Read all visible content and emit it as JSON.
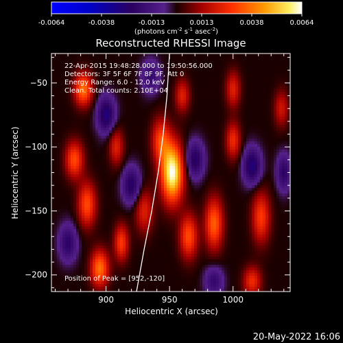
{
  "chart_data": {
    "type": "heatmap",
    "title": "Reconstructed RHESSI Image",
    "xlabel": "Heliocentric X (arcsec)",
    "ylabel": "Heliocentric Y (arcsec)",
    "xlim": [
      857,
      1045
    ],
    "ylim": [
      -213,
      -27
    ],
    "xticks": [
      900,
      950,
      1000
    ],
    "yticks": [
      -50,
      -100,
      -150,
      -200
    ],
    "colorbar": {
      "range": [
        -0.0064,
        0.0064
      ],
      "tick_labels": [
        "-0.0064",
        "-0.0038",
        "-0.0013",
        "0.0013",
        "0.0038",
        "0.0064"
      ],
      "unit_main": "(photons cm",
      "unit_exp1": "-2",
      "unit_mid": " s",
      "unit_exp2": "-1",
      "unit_end": " asec",
      "unit_exp3": "-2",
      "unit_close": ")"
    },
    "info_lines": [
      "22-Apr-2015 19:48:28.000 to 19:50:56.000",
      "Detectors: 3F 5F 6F 7F 8F 9F, Att 0",
      "Energy Range: 6.0 - 12.0 keV",
      "Clean.  Total counts: 2.10E+04"
    ],
    "peak_label": "Position of Peak = [952,-120]",
    "peak": {
      "x": 952,
      "y": -120,
      "value": 0.0064
    },
    "sources": [
      {
        "x": 952,
        "y": -120,
        "sx": 6,
        "sy": 16,
        "amp": 1.0
      },
      {
        "x": 943,
        "y": -95,
        "sx": 5,
        "sy": 12,
        "amp": 0.45
      },
      {
        "x": 930,
        "y": -150,
        "sx": 5,
        "sy": 12,
        "amp": 0.35
      },
      {
        "x": 882,
        "y": -55,
        "sx": 5,
        "sy": 9,
        "amp": 0.6
      },
      {
        "x": 875,
        "y": -110,
        "sx": 5,
        "sy": 10,
        "amp": 0.5
      },
      {
        "x": 885,
        "y": -145,
        "sx": 5,
        "sy": 12,
        "amp": 0.5
      },
      {
        "x": 895,
        "y": -195,
        "sx": 5,
        "sy": 10,
        "amp": 0.6
      },
      {
        "x": 908,
        "y": -100,
        "sx": 4,
        "sy": 10,
        "amp": 0.35
      },
      {
        "x": 912,
        "y": -175,
        "sx": 4,
        "sy": 10,
        "amp": 0.45
      },
      {
        "x": 965,
        "y": -170,
        "sx": 5,
        "sy": 12,
        "amp": 0.5
      },
      {
        "x": 985,
        "y": -160,
        "sx": 5,
        "sy": 14,
        "amp": 0.55
      },
      {
        "x": 960,
        "y": -60,
        "sx": 4,
        "sy": 9,
        "amp": 0.35
      },
      {
        "x": 1000,
        "y": -55,
        "sx": 4,
        "sy": 10,
        "amp": 0.35
      },
      {
        "x": 1000,
        "y": -95,
        "sx": 4,
        "sy": 10,
        "amp": 0.4
      },
      {
        "x": 1022,
        "y": -155,
        "sx": 5,
        "sy": 14,
        "amp": 0.45
      },
      {
        "x": 1038,
        "y": -70,
        "sx": 4,
        "sy": 10,
        "amp": 0.3
      },
      {
        "x": 1015,
        "y": -205,
        "sx": 5,
        "sy": 8,
        "amp": 0.4
      },
      {
        "x": 900,
        "y": -75,
        "sx": 5,
        "sy": 10,
        "amp": -0.45
      },
      {
        "x": 920,
        "y": -130,
        "sx": 5,
        "sy": 10,
        "amp": -0.4
      },
      {
        "x": 970,
        "y": -110,
        "sx": 5,
        "sy": 10,
        "amp": -0.4
      },
      {
        "x": 1015,
        "y": -115,
        "sx": 5,
        "sy": 10,
        "amp": -0.45
      },
      {
        "x": 1040,
        "y": -120,
        "sx": 4,
        "sy": 10,
        "amp": -0.35
      },
      {
        "x": 870,
        "y": -175,
        "sx": 5,
        "sy": 10,
        "amp": -0.35
      },
      {
        "x": 985,
        "y": -205,
        "sx": 5,
        "sy": 8,
        "amp": -0.3
      },
      {
        "x": 935,
        "y": -45,
        "sx": 5,
        "sy": 9,
        "amp": -0.3
      }
    ],
    "limb_curve": [
      [
        950,
        -27
      ],
      [
        948,
        -60
      ],
      [
        945,
        -90
      ],
      [
        941,
        -120
      ],
      [
        936,
        -150
      ],
      [
        930,
        -180
      ],
      [
        924,
        -213
      ]
    ]
  },
  "footer_date": "20-May-2022 16:06"
}
